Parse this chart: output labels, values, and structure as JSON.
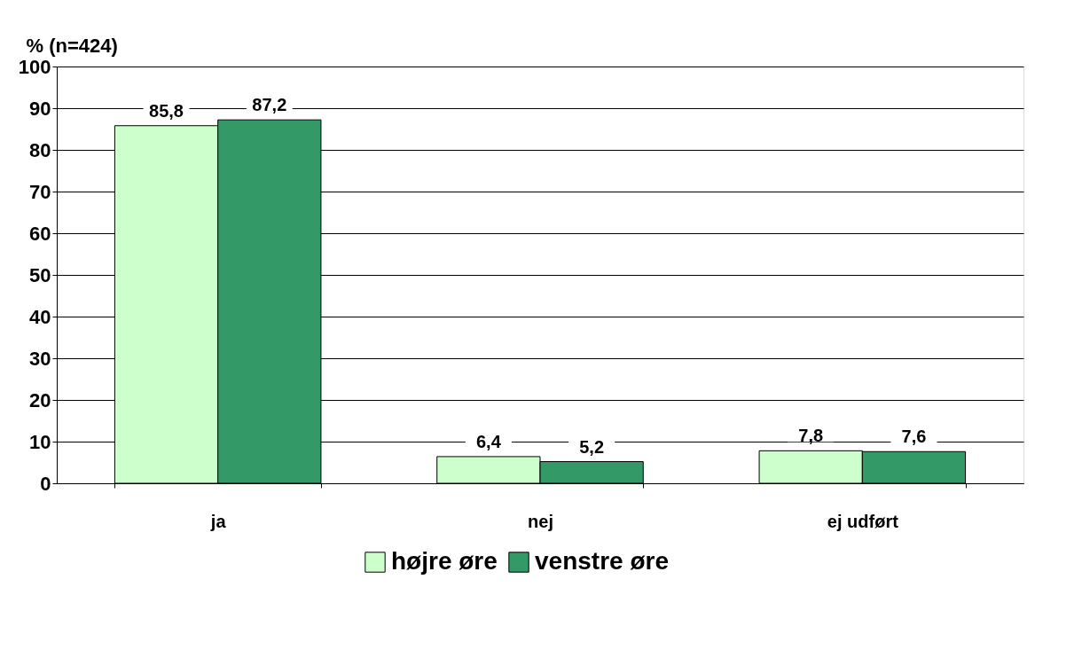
{
  "chart_data": {
    "type": "bar",
    "ylabel": "% (n=424)",
    "categories": [
      "ja",
      "nej",
      "ej udført"
    ],
    "series": [
      {
        "name": "højre øre",
        "color": "#ccffcc",
        "values": [
          85.8,
          6.4,
          7.8
        ],
        "value_labels": [
          "85,8",
          "6,4",
          "7,8"
        ]
      },
      {
        "name": "venstre øre",
        "color": "#339966",
        "values": [
          87.2,
          5.2,
          7.6
        ],
        "value_labels": [
          "87,2",
          "5,2",
          "7,6"
        ]
      }
    ],
    "ylim": [
      0,
      100
    ],
    "yticks": [
      0,
      10,
      20,
      30,
      40,
      50,
      60,
      70,
      80,
      90,
      100
    ],
    "grid": "y",
    "legend": "bottom"
  }
}
